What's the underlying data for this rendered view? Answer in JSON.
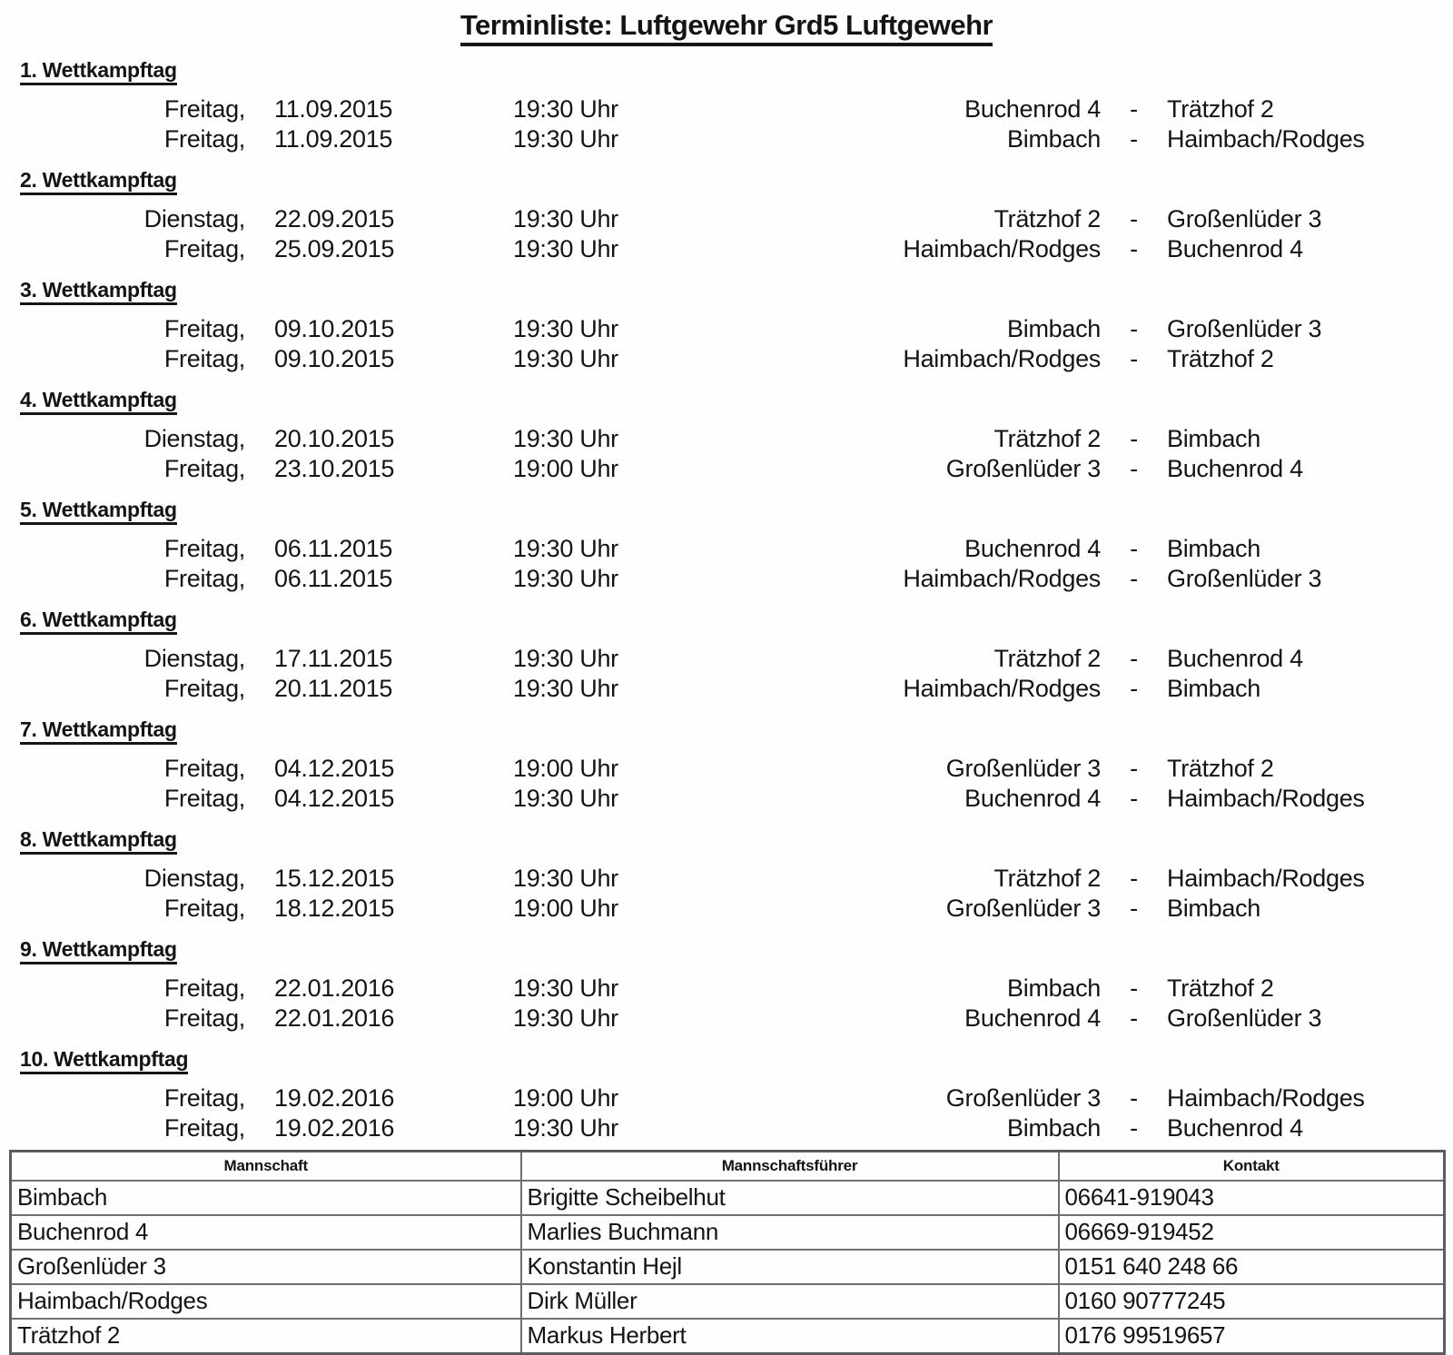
{
  "title": "Terminliste: Luftgewehr Grd5 Luftgewehr",
  "schedule": [
    {
      "label": "1. Wettkampftag",
      "matches": [
        {
          "day": "Freitag,",
          "date": "11.09.2015",
          "time": "19:30 Uhr",
          "home": "Buchenrod 4",
          "sep": "-",
          "away": "Trätzhof 2"
        },
        {
          "day": "Freitag,",
          "date": "11.09.2015",
          "time": "19:30 Uhr",
          "home": "Bimbach",
          "sep": "-",
          "away": "Haimbach/Rodges"
        }
      ]
    },
    {
      "label": "2. Wettkampftag",
      "matches": [
        {
          "day": "Dienstag,",
          "date": "22.09.2015",
          "time": "19:30 Uhr",
          "home": "Trätzhof 2",
          "sep": "-",
          "away": "Großenlüder 3"
        },
        {
          "day": "Freitag,",
          "date": "25.09.2015",
          "time": "19:30 Uhr",
          "home": "Haimbach/Rodges",
          "sep": "-",
          "away": "Buchenrod 4"
        }
      ]
    },
    {
      "label": "3. Wettkampftag",
      "matches": [
        {
          "day": "Freitag,",
          "date": "09.10.2015",
          "time": "19:30 Uhr",
          "home": "Bimbach",
          "sep": "-",
          "away": "Großenlüder 3"
        },
        {
          "day": "Freitag,",
          "date": "09.10.2015",
          "time": "19:30 Uhr",
          "home": "Haimbach/Rodges",
          "sep": "-",
          "away": "Trätzhof 2"
        }
      ]
    },
    {
      "label": "4. Wettkampftag",
      "matches": [
        {
          "day": "Dienstag,",
          "date": "20.10.2015",
          "time": "19:30 Uhr",
          "home": "Trätzhof 2",
          "sep": "-",
          "away": "Bimbach"
        },
        {
          "day": "Freitag,",
          "date": "23.10.2015",
          "time": "19:00 Uhr",
          "home": "Großenlüder 3",
          "sep": "-",
          "away": "Buchenrod 4"
        }
      ]
    },
    {
      "label": "5. Wettkampftag",
      "matches": [
        {
          "day": "Freitag,",
          "date": "06.11.2015",
          "time": "19:30 Uhr",
          "home": "Buchenrod 4",
          "sep": "-",
          "away": "Bimbach"
        },
        {
          "day": "Freitag,",
          "date": "06.11.2015",
          "time": "19:30 Uhr",
          "home": "Haimbach/Rodges",
          "sep": "-",
          "away": "Großenlüder 3"
        }
      ]
    },
    {
      "label": "6. Wettkampftag",
      "matches": [
        {
          "day": "Dienstag,",
          "date": "17.11.2015",
          "time": "19:30 Uhr",
          "home": "Trätzhof 2",
          "sep": "-",
          "away": "Buchenrod 4"
        },
        {
          "day": "Freitag,",
          "date": "20.11.2015",
          "time": "19:30 Uhr",
          "home": "Haimbach/Rodges",
          "sep": "-",
          "away": "Bimbach"
        }
      ]
    },
    {
      "label": "7. Wettkampftag",
      "matches": [
        {
          "day": "Freitag,",
          "date": "04.12.2015",
          "time": "19:00 Uhr",
          "home": "Großenlüder 3",
          "sep": "-",
          "away": "Trätzhof 2"
        },
        {
          "day": "Freitag,",
          "date": "04.12.2015",
          "time": "19:30 Uhr",
          "home": "Buchenrod 4",
          "sep": "-",
          "away": "Haimbach/Rodges"
        }
      ]
    },
    {
      "label": "8. Wettkampftag",
      "matches": [
        {
          "day": "Dienstag,",
          "date": "15.12.2015",
          "time": "19:30 Uhr",
          "home": "Trätzhof 2",
          "sep": "-",
          "away": "Haimbach/Rodges"
        },
        {
          "day": "Freitag,",
          "date": "18.12.2015",
          "time": "19:00 Uhr",
          "home": "Großenlüder 3",
          "sep": "-",
          "away": "Bimbach"
        }
      ]
    },
    {
      "label": "9. Wettkampftag",
      "matches": [
        {
          "day": "Freitag,",
          "date": "22.01.2016",
          "time": "19:30 Uhr",
          "home": "Bimbach",
          "sep": "-",
          "away": "Trätzhof 2"
        },
        {
          "day": "Freitag,",
          "date": "22.01.2016",
          "time": "19:30 Uhr",
          "home": "Buchenrod 4",
          "sep": "-",
          "away": "Großenlüder 3"
        }
      ]
    },
    {
      "label": "10. Wettkampftag",
      "matches": [
        {
          "day": "Freitag,",
          "date": "19.02.2016",
          "time": "19:00 Uhr",
          "home": "Großenlüder 3",
          "sep": "-",
          "away": "Haimbach/Rodges"
        },
        {
          "day": "Freitag,",
          "date": "19.02.2016",
          "time": "19:30 Uhr",
          "home": "Bimbach",
          "sep": "-",
          "away": "Buchenrod 4"
        }
      ]
    }
  ],
  "contacts": {
    "headers": [
      "Mannschaft",
      "Mannschaftsführer",
      "Kontakt"
    ],
    "rows": [
      [
        "Bimbach",
        "Brigitte Scheibelhut",
        "06641-919043"
      ],
      [
        "Buchenrod 4",
        "Marlies Buchmann",
        "06669-919452"
      ],
      [
        "Großenlüder 3",
        "Konstantin Hejl",
        "0151 640 248 66"
      ],
      [
        "Haimbach/Rodges",
        "Dirk Müller",
        "0160 90777245"
      ],
      [
        "Trätzhof 2",
        "Markus Herbert",
        "0176 99519657"
      ]
    ]
  }
}
